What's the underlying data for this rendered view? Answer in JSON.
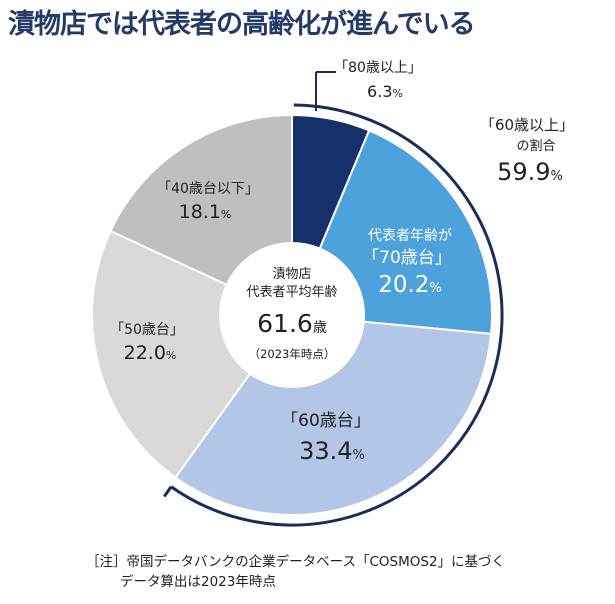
{
  "title": "漬物店では代表者の高齢化が進んでいる",
  "center": {
    "line1": "漬物店",
    "line2": "代表者平均年齢",
    "value": "61.6",
    "unit": "歳",
    "year": "（2023年時点）"
  },
  "bracket_label": {
    "line1": "「60歳以上」",
    "line2": "の割合",
    "value": "59.9",
    "unit": "%"
  },
  "note": {
    "line1": "［注］帝国データバンクの企業データベース「COSMOS2」に基づく",
    "line2": "データ算出は2023年時点"
  },
  "colors": {
    "title": "#243b6a",
    "bracket": "#1a2d5a"
  },
  "chart_data": {
    "type": "pie",
    "donut": true,
    "title": "漬物店では代表者の高齢化が進んでいる",
    "categories": [
      "「80歳以上」",
      "代表者年齢が「70歳台」",
      "「60歳台」",
      "「50歳台」",
      "「40歳台以下」"
    ],
    "values": [
      6.3,
      20.2,
      33.4,
      22.0,
      18.1
    ],
    "unit": "%",
    "slices": [
      {
        "label": "「80歳以上」",
        "value": "6.3",
        "color": "#15306a",
        "text_color": "#222222"
      },
      {
        "label_top": "代表者年齢が",
        "label": "「70歳台」",
        "value": "20.2",
        "color": "#4ea2dc",
        "text_color": "#ffffff"
      },
      {
        "label": "「60歳台」",
        "value": "33.4",
        "color": "#b3c6e7",
        "text_color": "#222222"
      },
      {
        "label": "「50歳台」",
        "value": "22.0",
        "color": "#d9d9d9",
        "text_color": "#222222"
      },
      {
        "label": "「40歳台以下」",
        "value": "18.1",
        "color": "#bfbfbf",
        "text_color": "#222222"
      }
    ]
  }
}
